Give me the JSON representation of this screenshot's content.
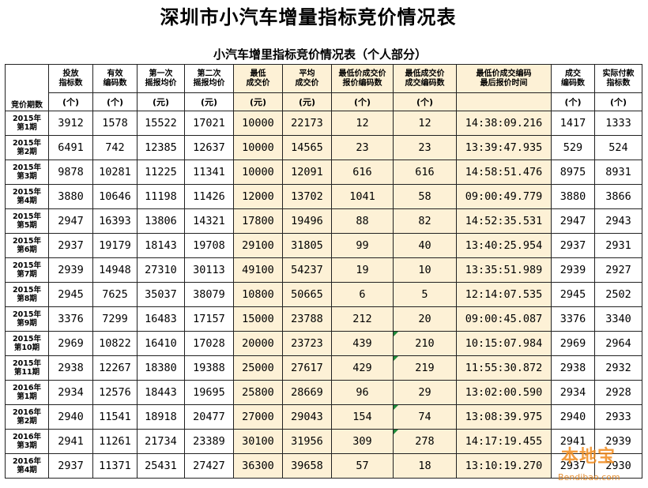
{
  "page_title": "深圳市小汽车增量指标竞价情况表",
  "table_title": "小汽车增里指标竞价情况表（个人部分）",
  "headers": {
    "period": "竞价期数",
    "columns": [
      {
        "label": "投放\n指标数",
        "unit": "(个)"
      },
      {
        "label": "有效\n编码数",
        "unit": "(个)"
      },
      {
        "label": "第一次\n摇报均价",
        "unit": "(元)"
      },
      {
        "label": "第二次\n摇报均价",
        "unit": "(元)"
      },
      {
        "label": "最低\n成交价",
        "unit": "(元)"
      },
      {
        "label": "平均\n成交价",
        "unit": "(元)"
      },
      {
        "label": "最低价成交价\n报价编码数",
        "unit": "(个)"
      },
      {
        "label": "最低成交价\n成交编码数",
        "unit": "(个)"
      },
      {
        "label": "最低价成交编码\n最后报价时间",
        "unit": ""
      },
      {
        "label": "成交\n编码数",
        "unit": "(个)"
      },
      {
        "label": "实际付款\n指标数",
        "unit": "(个)"
      }
    ]
  },
  "rows": [
    {
      "period": "2015年\n第1期",
      "cells": [
        "3912",
        "1578",
        "15522",
        "17021",
        "10000",
        "22173",
        "12",
        "12",
        "14:38:09.216",
        "1417",
        "1333"
      ]
    },
    {
      "period": "2015年\n第2期",
      "cells": [
        "6491",
        "742",
        "12385",
        "12637",
        "10000",
        "14565",
        "23",
        "23",
        "13:39:47.935",
        "529",
        "524"
      ]
    },
    {
      "period": "2015年\n第3期",
      "cells": [
        "9878",
        "10281",
        "11225",
        "11341",
        "10000",
        "12091",
        "616",
        "616",
        "14:58:51.476",
        "8975",
        "8931"
      ]
    },
    {
      "period": "2015年\n第4期",
      "cells": [
        "3880",
        "10646",
        "11198",
        "11426",
        "12000",
        "13702",
        "1041",
        "58",
        "09:00:49.779",
        "3880",
        "3866"
      ]
    },
    {
      "period": "2015年\n第5期",
      "cells": [
        "2947",
        "16393",
        "13806",
        "14321",
        "17800",
        "19496",
        "88",
        "82",
        "14:52:35.531",
        "2947",
        "2943"
      ]
    },
    {
      "period": "2015年\n第6期",
      "cells": [
        "2937",
        "19179",
        "18143",
        "19708",
        "29100",
        "31805",
        "99",
        "40",
        "13:40:25.954",
        "2937",
        "2931"
      ]
    },
    {
      "period": "2015年\n第7期",
      "cells": [
        "2939",
        "14948",
        "27310",
        "30113",
        "49100",
        "54237",
        "19",
        "10",
        "13:35:51.989",
        "2939",
        "2927"
      ]
    },
    {
      "period": "2015年\n第8期",
      "cells": [
        "2945",
        "7625",
        "35037",
        "38079",
        "10800",
        "50665",
        "6",
        "5",
        "12:14:07.535",
        "2945",
        "2502"
      ]
    },
    {
      "period": "2015年\n第9期",
      "cells": [
        "3376",
        "7299",
        "16483",
        "17157",
        "15000",
        "23788",
        "212",
        "20",
        "09:00:45.087",
        "3376",
        "3340"
      ]
    },
    {
      "period": "2015年\n第10期",
      "cells": [
        "2969",
        "10822",
        "16410",
        "17028",
        "20000",
        "23723",
        "439",
        "210",
        "10:15:07.984",
        "2969",
        "2964"
      ]
    },
    {
      "period": "2015年\n第11期",
      "cells": [
        "2938",
        "12267",
        "18380",
        "19388",
        "25000",
        "27617",
        "429",
        "219",
        "11:55:30.872",
        "2938",
        "2932"
      ]
    },
    {
      "period": "2016年\n第1期",
      "cells": [
        "2934",
        "12576",
        "18443",
        "19695",
        "25800",
        "28669",
        "96",
        "29",
        "13:02:00.590",
        "2934",
        "2928"
      ]
    },
    {
      "period": "2016年\n第2期",
      "cells": [
        "2940",
        "11541",
        "18918",
        "20477",
        "27000",
        "29043",
        "154",
        "74",
        "13:08:39.975",
        "2940",
        "2933"
      ]
    },
    {
      "period": "2016年\n第3期",
      "cells": [
        "2941",
        "11261",
        "21734",
        "23389",
        "30100",
        "31956",
        "309",
        "278",
        "14:17:19.455",
        "2941",
        "2939"
      ]
    },
    {
      "period": "2016年\n第4期",
      "cells": [
        "2937",
        "11371",
        "25431",
        "27427",
        "36300",
        "39658",
        "57",
        "18",
        "13:10:19.270",
        "2937",
        "2930"
      ]
    }
  ],
  "watermark": {
    "logo": "本地宝",
    "url": "Bendibao.com"
  }
}
